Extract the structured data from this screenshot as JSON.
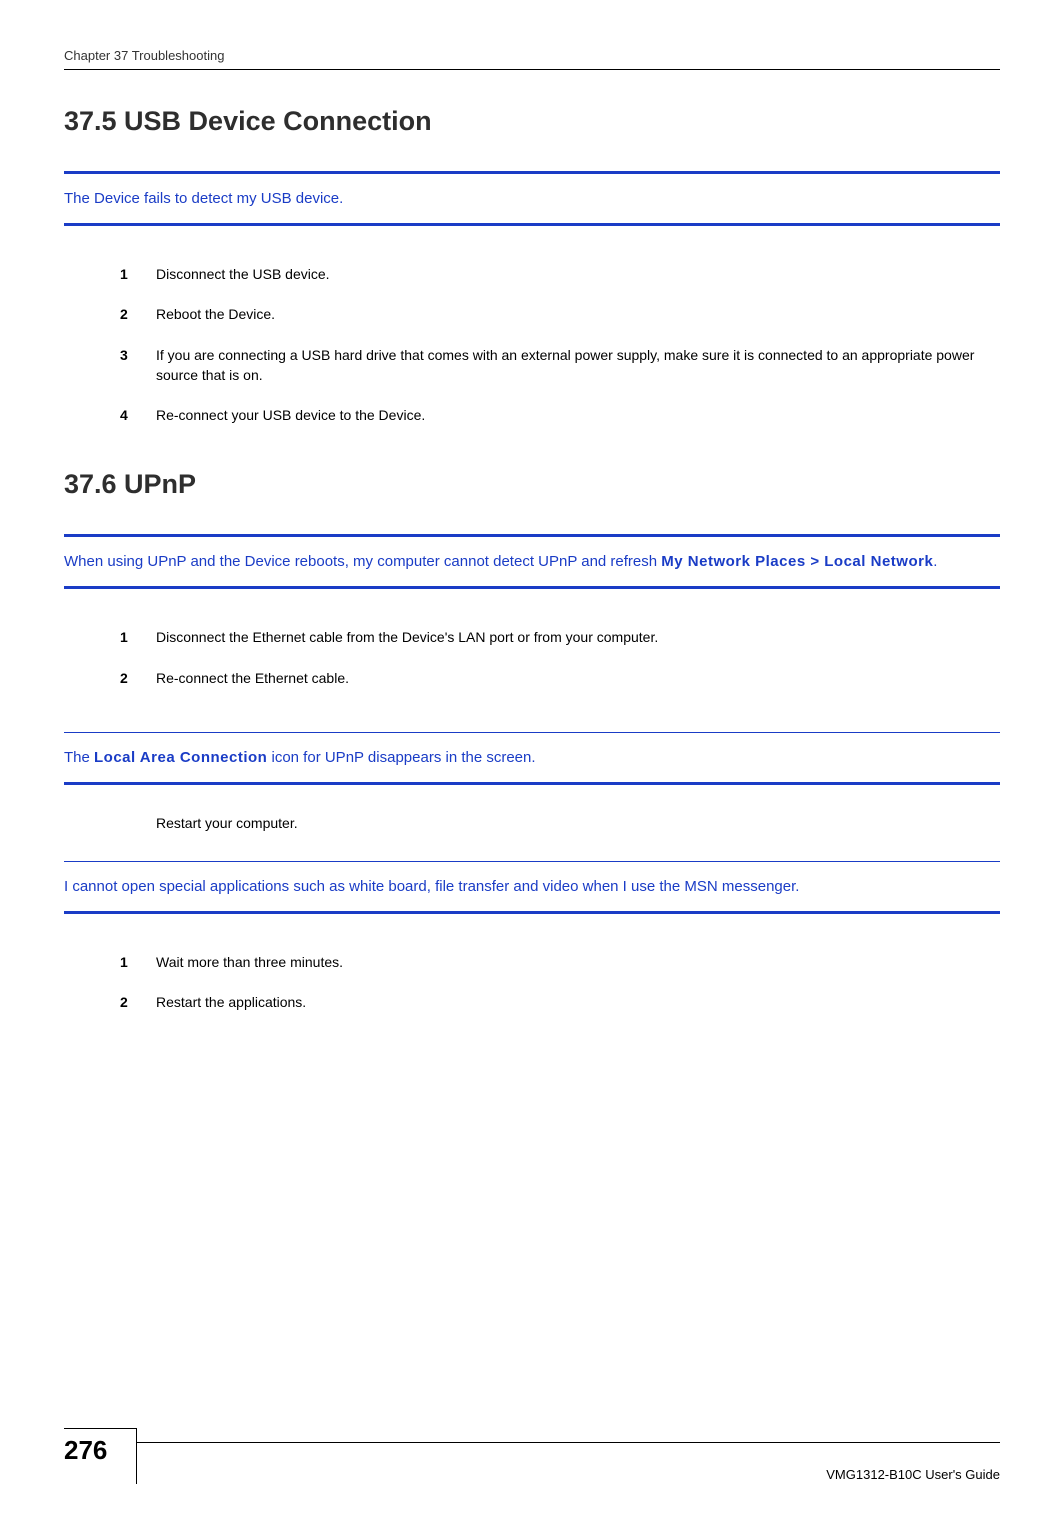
{
  "header": {
    "running": "Chapter 37 Troubleshooting"
  },
  "sections": {
    "usb": {
      "heading": "37.5  USB Device Connection",
      "issue1": {
        "text": "The Device fails to detect my USB device."
      },
      "steps1": {
        "n1": "1",
        "t1": "Disconnect the USB device.",
        "n2": "2",
        "t2": "Reboot the Device.",
        "n3": "3",
        "t3": "If you are connecting a USB hard drive that comes with an external power supply, make sure it is connected to an appropriate power source that is on.",
        "n4": "4",
        "t4": "Re-connect your USB device to the Device."
      }
    },
    "upnp": {
      "heading": "37.6  UPnP",
      "issue1": {
        "pre": "When using UPnP and the Device reboots, my computer cannot detect UPnP and refresh ",
        "bold": "My Network Places > Local Network",
        "post": "."
      },
      "steps1": {
        "n1": "1",
        "t1": "Disconnect the Ethernet cable from the Device's LAN port or from your computer.",
        "n2": "2",
        "t2": "Re-connect the Ethernet cable."
      },
      "issue2": {
        "pre": "The ",
        "bold": "Local Area Connection",
        "post": " icon for UPnP disappears in the screen."
      },
      "plain2": "Restart your computer.",
      "issue3": {
        "text": "I cannot open special applications such as white board, file transfer and video when I use the MSN messenger."
      },
      "steps3": {
        "n1": "1",
        "t1": "Wait more than three minutes.",
        "n2": "2",
        "t2": "Restart the applications."
      }
    }
  },
  "footer": {
    "page": "276",
    "guide": "VMG1312-B10C User's Guide"
  },
  "style": {
    "accent": "#1a3cc6",
    "heading_color": "#2e2e2e",
    "body_font_size": 14,
    "heading_font_size": 27
  }
}
